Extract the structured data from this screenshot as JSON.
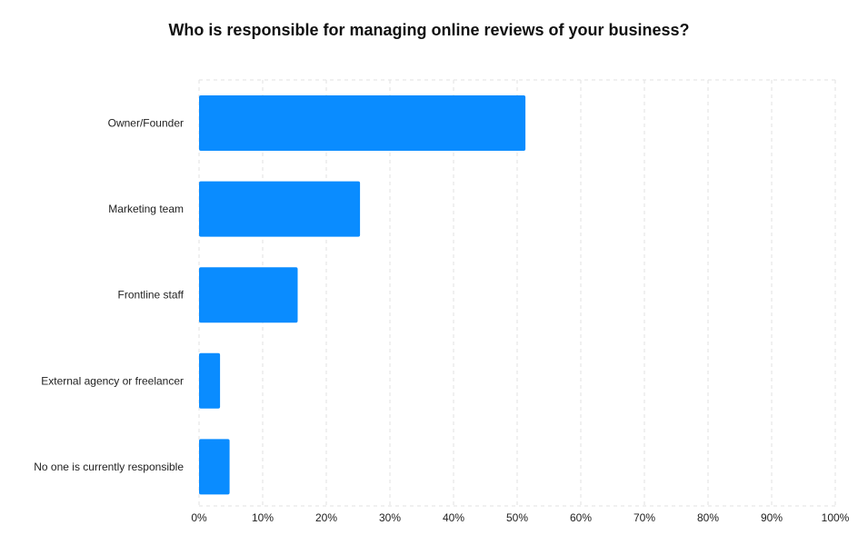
{
  "chart_data": {
    "type": "bar",
    "orientation": "horizontal",
    "title": "Who is responsible for managing online reviews of your business?",
    "categories": [
      "Owner/Founder",
      "Marketing team",
      "Frontline staff",
      "External agency or freelancer",
      "No one is currently responsible"
    ],
    "values": [
      51.3,
      25.3,
      15.5,
      3.3,
      4.8
    ],
    "value_unit": "%",
    "xlim": [
      0,
      100
    ],
    "x_ticks": [
      0,
      10,
      20,
      30,
      40,
      50,
      60,
      70,
      80,
      90,
      100
    ],
    "x_tick_labels": [
      "0%",
      "10%",
      "20%",
      "30%",
      "40%",
      "50%",
      "60%",
      "70%",
      "80%",
      "90%",
      "100%"
    ],
    "xlabel": "",
    "ylabel": "",
    "grid": true,
    "legend": false,
    "bar_color": "#0a8cff"
  }
}
